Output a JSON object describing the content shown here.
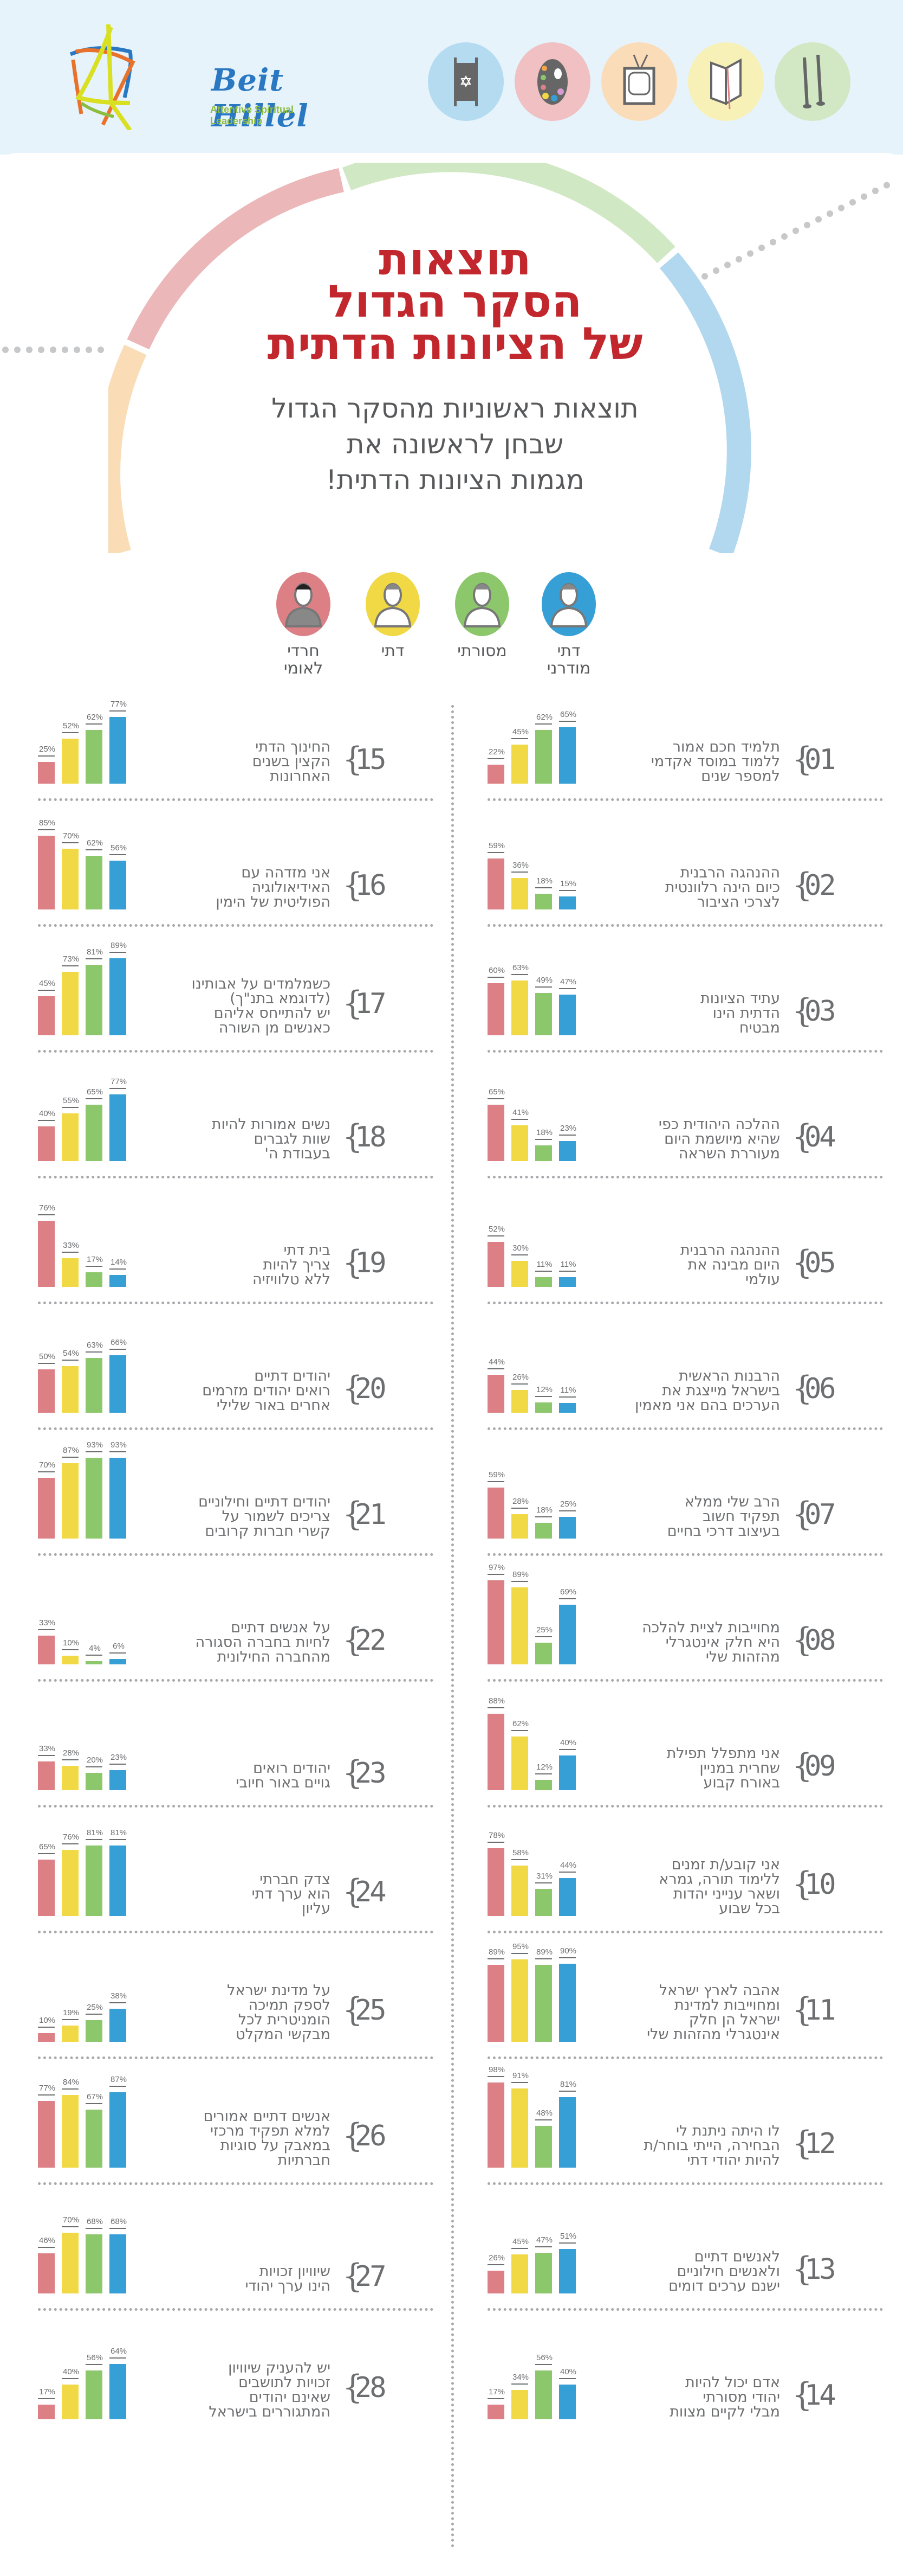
{
  "header": {
    "logo_title": "Beit Hillel",
    "logo_tagline": "Attentive Spiritual Leadership",
    "top_icons": [
      {
        "name": "torah-scroll-icon",
        "bg": "#b5dbf1"
      },
      {
        "name": "paint-palette-icon",
        "bg": "#f0c0c3"
      },
      {
        "name": "television-icon",
        "bg": "#fbdcb9"
      },
      {
        "name": "open-book-icon",
        "bg": "#f8f1b7"
      },
      {
        "name": "candlesticks-icon",
        "bg": "#d2e8c5"
      }
    ]
  },
  "hero": {
    "title_lines": [
      "תוצאות",
      "הסקר הגדול",
      "של הציונות הדתית"
    ],
    "subtitle_lines": [
      "תוצאות ראשוניות מהסקר הגדול",
      "שבחן לראשונה את",
      "מגמות הציונות הדתית!"
    ],
    "ring_colors": {
      "green": "#d1e8c4",
      "blue": "#b2d8ef",
      "pink": "#ebb7b8",
      "orange": "#fadcb6"
    }
  },
  "legend": {
    "groups": [
      {
        "label_lines": [
          "חרדי",
          "לאומי"
        ],
        "color": "#dc8085",
        "icon": "haredi-leumi-person-icon"
      },
      {
        "label_lines": [
          "דתי"
        ],
        "color": "#f0d945",
        "icon": "religious-person-icon"
      },
      {
        "label_lines": [
          "מסורתי"
        ],
        "color": "#8dc76c",
        "icon": "traditional-person-icon"
      },
      {
        "label_lines": [
          "דתי",
          "מודרני"
        ],
        "color": "#359fd6",
        "icon": "modern-religious-person-icon"
      }
    ]
  },
  "chart_data": {
    "type": "bar",
    "title": "תוצאות הסקר הגדול של הציונות הדתית",
    "subtitle": "תוצאות ראשוניות מהסקר הגדול שבחן לראשונה את מגמות הציונות הדתית!",
    "series_names": [
      "חרדי לאומי",
      "דתי",
      "מסורתי",
      "דתי מודרני"
    ],
    "series_colors": [
      "#dc8085",
      "#f0d945",
      "#8dc76c",
      "#359fd6"
    ],
    "unit": "%",
    "ylim": [
      0,
      100
    ],
    "grid": false,
    "legend_position": "top",
    "questions": [
      {
        "num": "01",
        "text_lines": [
          "תלמיד חכם אמור",
          "ללמוד במוסד אקדמי",
          "למספר שנים"
        ],
        "values": [
          22,
          45,
          62,
          65
        ]
      },
      {
        "num": "02",
        "text_lines": [
          "ההנהגה הרבנית",
          "כיום הינה רלוונטית",
          "לצרכי הציבור"
        ],
        "values": [
          59,
          36,
          18,
          15
        ]
      },
      {
        "num": "03",
        "text_lines": [
          "עתיד הציונות",
          "הדתית הינו",
          "מבטיח"
        ],
        "values": [
          60,
          63,
          49,
          47
        ]
      },
      {
        "num": "04",
        "text_lines": [
          "ההלכה היהודית כפי",
          "שהיא מיושמת היום",
          "מעוררת השראה"
        ],
        "values": [
          65,
          41,
          18,
          23
        ]
      },
      {
        "num": "05",
        "text_lines": [
          "ההנהגה הרבנית",
          "היום מבינה את",
          "עולמי"
        ],
        "values": [
          52,
          30,
          11,
          11
        ]
      },
      {
        "num": "06",
        "text_lines": [
          "הרבנות הראשית",
          "בישראל מייצגת את",
          "הערכים בהם אני מאמין"
        ],
        "values": [
          44,
          26,
          12,
          11
        ]
      },
      {
        "num": "07",
        "text_lines": [
          "הרב שלי ממלא",
          "תפקיד חשוב",
          "בעיצוב דרכי בחיים"
        ],
        "values": [
          59,
          28,
          18,
          25
        ]
      },
      {
        "num": "08",
        "text_lines": [
          "מחוייבות לציית להלכה",
          "היא חלק אינטגרלי",
          "מהזהות שלי"
        ],
        "values": [
          97,
          89,
          25,
          69
        ]
      },
      {
        "num": "09",
        "text_lines": [
          "אני מתפלל תפילת",
          "שחרית במניין",
          "באורח קבוע"
        ],
        "values": [
          88,
          62,
          12,
          40
        ]
      },
      {
        "num": "10",
        "text_lines": [
          "אני קובע/ת זמנים",
          "ללימוד תורה, גמרא",
          "ושאר ענייני יהדות",
          "בכל שבוע"
        ],
        "values": [
          78,
          58,
          31,
          44
        ]
      },
      {
        "num": "11",
        "text_lines": [
          "אהבה לארץ ישראל",
          "ומחוייבות למדינת",
          "ישראל הן חלק",
          "אינטגרלי מהזהות שלי"
        ],
        "values": [
          89,
          95,
          89,
          90
        ]
      },
      {
        "num": "12",
        "text_lines": [
          "לו היתה ניתנת לי",
          "הבחירה, הייתי בוחר/ת",
          "להיות יהודי דתי"
        ],
        "values": [
          98,
          91,
          48,
          81
        ]
      },
      {
        "num": "13",
        "text_lines": [
          "לאנשים דתיים",
          "ולאנשים חילוניים",
          "ישנם ערכים דומים"
        ],
        "values": [
          26,
          45,
          47,
          51
        ]
      },
      {
        "num": "14",
        "text_lines": [
          "אדם יכול להיות",
          "יהודי מסורתי",
          "מבלי לקיים מצוות"
        ],
        "values": [
          17,
          34,
          56,
          40
        ]
      },
      {
        "num": "15",
        "text_lines": [
          "החינוך הדתי",
          "הקצין בשנים",
          "האחרונות"
        ],
        "values": [
          25,
          52,
          62,
          77
        ]
      },
      {
        "num": "16",
        "text_lines": [
          "אני מזדהה עם",
          "האידיאולוגיה",
          "הפוליטית של הימין"
        ],
        "values": [
          85,
          70,
          62,
          56
        ]
      },
      {
        "num": "17",
        "text_lines": [
          "כשמלמדים על אבותינו",
          "(לדוגמא בתנ\"ך)",
          "יש להתייחס אליהם",
          "כאנשים מן השורה"
        ],
        "values": [
          45,
          73,
          81,
          89
        ]
      },
      {
        "num": "18",
        "text_lines": [
          "נשים אמורות להיות",
          "שוות לגברים",
          "בעבודת ה'"
        ],
        "values": [
          40,
          55,
          65,
          77
        ]
      },
      {
        "num": "19",
        "text_lines": [
          "בית דתי",
          "צריך להיות",
          "ללא טלוויזיה"
        ],
        "values": [
          76,
          33,
          17,
          14
        ]
      },
      {
        "num": "20",
        "text_lines": [
          "יהודים דתיים",
          "רואים יהודים מזרמים",
          "אחרים באור שלילי"
        ],
        "values": [
          50,
          54,
          63,
          66
        ]
      },
      {
        "num": "21",
        "text_lines": [
          "יהודים דתיים וחילוניים",
          "צריכים לשמור על",
          "קשרי חברות קרובים"
        ],
        "values": [
          70,
          87,
          93,
          93
        ]
      },
      {
        "num": "22",
        "text_lines": [
          "על אנשים דתיים",
          "לחיות בחברה הסגורה",
          "מהחברה החילונית"
        ],
        "values": [
          33,
          10,
          4,
          6
        ]
      },
      {
        "num": "23",
        "text_lines": [
          "יהודים רואים",
          "גויים באור חיובי"
        ],
        "values": [
          33,
          28,
          20,
          23
        ]
      },
      {
        "num": "24",
        "text_lines": [
          "צדק חברתי",
          "הוא ערך דתי",
          "עליון"
        ],
        "values": [
          65,
          76,
          81,
          81
        ]
      },
      {
        "num": "25",
        "text_lines": [
          "על מדינת ישראל",
          "לספק תמיכה",
          "הומניטרית לכל",
          "מבקשי המקלט"
        ],
        "values": [
          10,
          19,
          25,
          38
        ]
      },
      {
        "num": "26",
        "text_lines": [
          "אנשים דתיים אמורים",
          "למלא תפקיד מרכזי",
          "במאבק על סוגיות",
          "חברתיות"
        ],
        "values": [
          77,
          84,
          67,
          87
        ]
      },
      {
        "num": "27",
        "text_lines": [
          "שיוויון זכויות",
          "הינו ערך יהודי"
        ],
        "values": [
          46,
          70,
          68,
          68
        ]
      },
      {
        "num": "28",
        "text_lines": [
          "יש להעניק שיוויון",
          "זכויות לתושבים",
          "שאינם יהודים",
          "המתגוררים בישראל"
        ],
        "values": [
          17,
          40,
          56,
          64
        ]
      }
    ]
  }
}
